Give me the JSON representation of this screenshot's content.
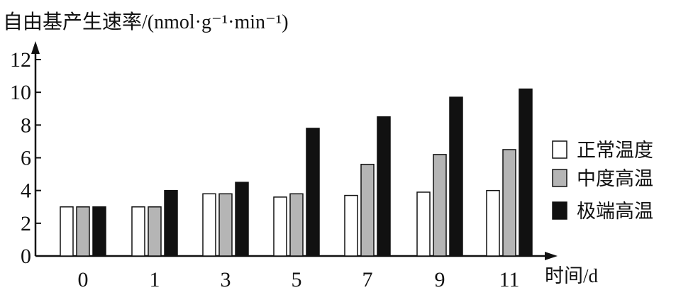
{
  "chart_data": {
    "type": "bar",
    "ylabel": "自由基产生速率/(nmol·g⁻¹·min⁻¹)",
    "xlabel": "时间/d",
    "categories": [
      "0",
      "1",
      "3",
      "5",
      "7",
      "9",
      "11"
    ],
    "ylim": [
      0,
      12
    ],
    "yticks": [
      "0",
      "2",
      "4",
      "6",
      "8",
      "10",
      "12"
    ],
    "grid": false,
    "legend_position": "right",
    "series": [
      {
        "name": "正常温度",
        "fill": "#ffffff",
        "values": [
          3.0,
          3.0,
          3.8,
          3.6,
          3.7,
          3.9,
          4.0
        ]
      },
      {
        "name": "中度高温",
        "fill": "#b5b5b5",
        "values": [
          3.0,
          3.0,
          3.8,
          3.8,
          5.6,
          6.2,
          6.5
        ]
      },
      {
        "name": "极端高温",
        "fill": "#111111",
        "values": [
          3.0,
          4.0,
          4.5,
          7.8,
          8.5,
          9.7,
          10.2
        ]
      }
    ]
  }
}
